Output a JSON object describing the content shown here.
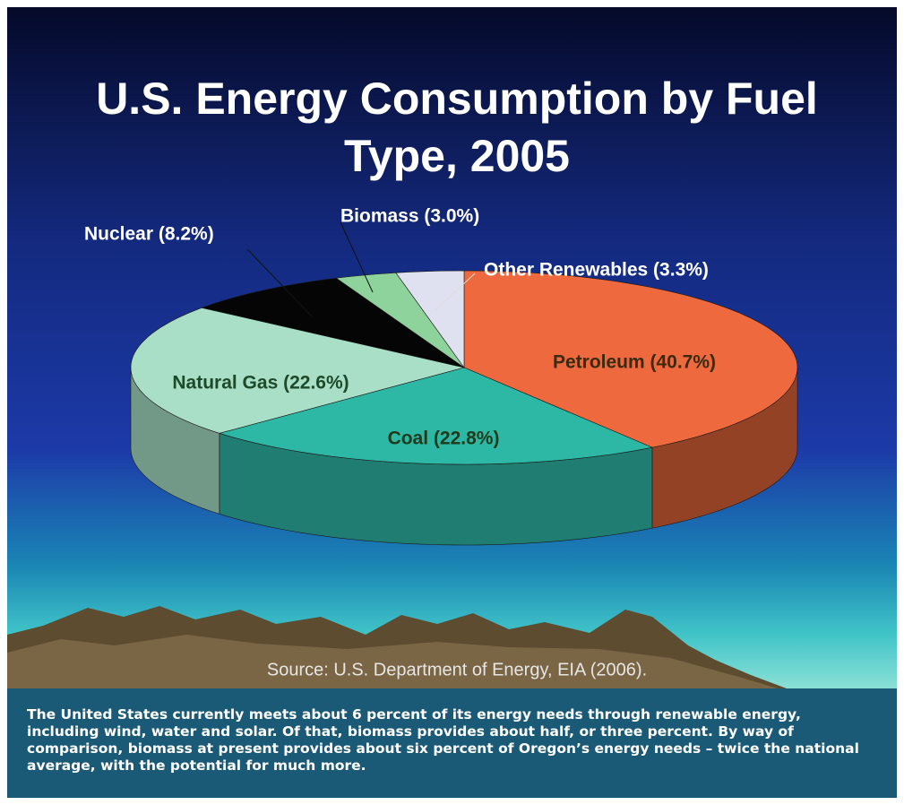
{
  "chart_data": {
    "type": "pie3d",
    "title": "U.S. Energy Consumption by Fuel Type, 2005",
    "values": [
      40.7,
      22.8,
      22.6,
      8.2,
      3.0,
      3.3
    ],
    "value_labels": [
      "Petroleum (40.7%)",
      "Coal (22.8%)",
      "Natural Gas (22.6%)",
      "Nuclear (8.2%)",
      "Biomass (3.0%)",
      "Other Renewables (3.3%)"
    ],
    "colors": [
      "#ee6a3e",
      "#2db8a6",
      "#a8dfc6",
      "#050505",
      "#8fd39c",
      "#dfe0f0"
    ],
    "source": "Source: U.S. Department of Energy, EIA (2006)."
  },
  "caption": "The United States currently meets about 6 percent of its energy needs through renewable energy, including wind, water and solar. Of that, biomass provides about half, or three percent. By way of comparison, biomass at present provides about six percent of Oregon’s energy needs – twice the national average, with the potential for much more."
}
